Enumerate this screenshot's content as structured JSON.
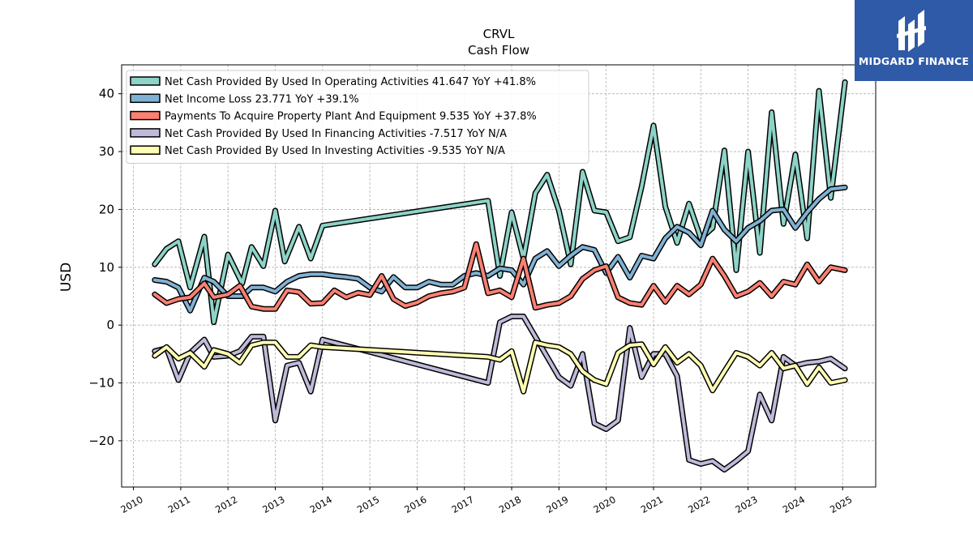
{
  "chart_data": {
    "type": "line",
    "title": "CRVL",
    "subtitle": "Cash Flow",
    "ylabel": "USD",
    "xlabel": "",
    "xlim": [
      2009.75,
      2025.7
    ],
    "ylim": [
      -28,
      45
    ],
    "yticks": [
      -20,
      -10,
      0,
      10,
      20,
      30,
      40
    ],
    "ytick_labels": [
      "−20",
      "−10",
      "0",
      "10",
      "20",
      "30",
      "40"
    ],
    "xticks": [
      2010,
      2011,
      2012,
      2013,
      2014,
      2015,
      2016,
      2017,
      2018,
      2019,
      2020,
      2021,
      2022,
      2023,
      2024,
      2025
    ],
    "grid": true,
    "legend_position": "top-left",
    "series": [
      {
        "name": "Net Cash Provided By Used In Operating Activities  41.647 YoY +41.8%",
        "color": "#8dd3c7",
        "x": [
          2010.45,
          2010.7,
          2010.95,
          2011.2,
          2011.5,
          2011.7,
          2012.0,
          2012.3,
          2012.5,
          2012.75,
          2013.0,
          2013.2,
          2013.5,
          2013.75,
          2014.0,
          2017.5,
          2017.75,
          2018.0,
          2018.25,
          2018.5,
          2018.75,
          2019.0,
          2019.25,
          2019.5,
          2019.75,
          2020.0,
          2020.25,
          2020.5,
          2020.75,
          2021.0,
          2021.25,
          2021.5,
          2021.75,
          2022.0,
          2022.25,
          2022.5,
          2022.75,
          2023.0,
          2023.25,
          2023.5,
          2023.75,
          2024.0,
          2024.25,
          2024.5,
          2024.75,
          2025.05
        ],
        "y": [
          10.5,
          13.2,
          14.5,
          6.5,
          15.3,
          0.5,
          12.2,
          7.2,
          13.5,
          10.2,
          19.8,
          11,
          17,
          11.5,
          17.2,
          21.5,
          8.5,
          19.5,
          11.5,
          22.8,
          26,
          19.8,
          10.5,
          26.5,
          19.8,
          19.5,
          14.5,
          15.2,
          24,
          34.5,
          20.5,
          14.2,
          21,
          15,
          16.8,
          30.2,
          9.5,
          30,
          12.5,
          36.8,
          17.5,
          29.5,
          15,
          40.5,
          22,
          42
        ]
      },
      {
        "name": "Net Income Loss  23.771 YoY +39.1%",
        "color": "#80b1d3",
        "x": [
          2010.45,
          2010.7,
          2010.95,
          2011.2,
          2011.5,
          2011.7,
          2012.0,
          2012.3,
          2012.5,
          2012.75,
          2013.0,
          2013.25,
          2013.5,
          2013.75,
          2014.0,
          2014.25,
          2014.5,
          2014.75,
          2015.0,
          2015.25,
          2015.5,
          2015.75,
          2016.0,
          2016.25,
          2016.5,
          2016.75,
          2017.0,
          2017.25,
          2017.5,
          2017.75,
          2018.0,
          2018.25,
          2018.5,
          2018.75,
          2019.0,
          2019.25,
          2019.5,
          2019.75,
          2020.0,
          2020.25,
          2020.5,
          2020.75,
          2021.0,
          2021.25,
          2021.5,
          2021.75,
          2022.0,
          2022.25,
          2022.5,
          2022.75,
          2023.0,
          2023.25,
          2023.5,
          2023.75,
          2024.0,
          2024.25,
          2024.5,
          2024.75,
          2025.05
        ],
        "y": [
          7.8,
          7.5,
          6.5,
          2.5,
          8.2,
          7.5,
          5,
          5,
          6.5,
          6.5,
          5.8,
          7.5,
          8.5,
          8.8,
          8.8,
          8.5,
          8.3,
          8,
          6.5,
          5.8,
          8.3,
          6.5,
          6.5,
          7.5,
          7,
          7,
          8.5,
          9,
          8.5,
          9.8,
          9.5,
          7,
          11.5,
          12.8,
          10.2,
          12,
          13.5,
          13,
          9,
          11.8,
          8.2,
          12,
          11.5,
          15,
          17,
          16,
          13.8,
          19.8,
          16.5,
          14.5,
          16.8,
          18,
          19.8,
          20,
          16.8,
          19.5,
          21.8,
          23.5,
          23.8
        ]
      },
      {
        "name": "Payments To Acquire Property Plant And Equipment  9.535 YoY +37.8%",
        "color": "#fb8072",
        "x": [
          2010.45,
          2010.7,
          2010.95,
          2011.2,
          2011.5,
          2011.7,
          2012.0,
          2012.25,
          2012.5,
          2012.75,
          2013.0,
          2013.25,
          2013.5,
          2013.75,
          2014.0,
          2014.25,
          2014.5,
          2014.75,
          2015.0,
          2015.25,
          2015.5,
          2015.75,
          2016.0,
          2016.25,
          2016.5,
          2016.75,
          2017.0,
          2017.25,
          2017.5,
          2017.75,
          2018.0,
          2018.25,
          2018.5,
          2018.75,
          2019.0,
          2019.25,
          2019.5,
          2019.75,
          2020.0,
          2020.25,
          2020.5,
          2020.75,
          2021.0,
          2021.25,
          2021.5,
          2021.75,
          2022.0,
          2022.25,
          2022.5,
          2022.75,
          2023.0,
          2023.25,
          2023.5,
          2023.75,
          2024.0,
          2024.25,
          2024.5,
          2024.75,
          2025.05
        ],
        "y": [
          5.3,
          3.8,
          4.5,
          4.8,
          7.2,
          4.8,
          5.3,
          6.8,
          3.2,
          2.8,
          2.8,
          6,
          5.7,
          3.7,
          3.8,
          6,
          4.8,
          5.6,
          5.2,
          8.5,
          4.5,
          3.3,
          3.9,
          5,
          5.5,
          5.8,
          6.5,
          14,
          5.5,
          6,
          4.8,
          11.5,
          3,
          3.5,
          3.8,
          5,
          8,
          9.5,
          10.2,
          4.8,
          3.8,
          3.5,
          6.8,
          4,
          6.8,
          5.3,
          7,
          11.5,
          8.5,
          5,
          5.8,
          7.3,
          5,
          7.5,
          7,
          10.5,
          7.5,
          10,
          9.5
        ]
      },
      {
        "name": "Net Cash Provided By Used In Financing Activities  -7.517 YoY N/A",
        "color": "#bebada",
        "x": [
          2010.45,
          2010.7,
          2010.95,
          2011.2,
          2011.5,
          2011.7,
          2012.0,
          2012.25,
          2012.5,
          2012.75,
          2013.0,
          2013.25,
          2013.5,
          2013.75,
          2014.0,
          2017.5,
          2017.75,
          2018.0,
          2018.25,
          2018.5,
          2018.75,
          2019.0,
          2019.25,
          2019.5,
          2019.75,
          2020.0,
          2020.25,
          2020.5,
          2020.75,
          2021.0,
          2021.25,
          2021.5,
          2021.75,
          2022.0,
          2022.25,
          2022.5,
          2022.75,
          2023.0,
          2023.25,
          2023.5,
          2023.75,
          2024.0,
          2024.25,
          2024.5,
          2024.75,
          2025.05
        ],
        "y": [
          -4.5,
          -4,
          -9.5,
          -4.8,
          -2.5,
          -5.5,
          -5.3,
          -4.5,
          -2,
          -2,
          -16.5,
          -7,
          -6.5,
          -11.5,
          -2.5,
          -10,
          0.5,
          1.5,
          1.5,
          -2,
          -5.5,
          -9,
          -10.5,
          -5,
          -17,
          -18,
          -16.5,
          -0.5,
          -9,
          -5,
          -5,
          -8.8,
          -23.3,
          -24,
          -23.5,
          -25,
          -23.5,
          -21.8,
          -12,
          -16.5,
          -5.5,
          -7,
          -6.5,
          -6.3,
          -5.8,
          -7.5
        ]
      },
      {
        "name": "Net Cash Provided By Used In Investing Activities  -9.535 YoY N/A",
        "color": "#ffffb3",
        "x": [
          2010.45,
          2010.7,
          2010.95,
          2011.2,
          2011.5,
          2011.7,
          2012.0,
          2012.25,
          2012.5,
          2012.75,
          2013.0,
          2013.25,
          2013.5,
          2013.75,
          2014.0,
          2017.5,
          2017.75,
          2018.0,
          2018.25,
          2018.5,
          2018.75,
          2019.0,
          2019.25,
          2019.5,
          2019.75,
          2020.0,
          2020.25,
          2020.5,
          2020.75,
          2021.0,
          2021.25,
          2021.5,
          2021.75,
          2022.0,
          2022.25,
          2022.5,
          2022.75,
          2023.0,
          2023.25,
          2023.5,
          2023.75,
          2024.0,
          2024.25,
          2024.5,
          2024.75,
          2025.05
        ],
        "y": [
          -5.3,
          -3.8,
          -5.8,
          -4.8,
          -7.2,
          -4.3,
          -5,
          -6.5,
          -3.5,
          -3,
          -3,
          -5.5,
          -5.5,
          -3.5,
          -3.8,
          -5.5,
          -6,
          -4.5,
          -11.5,
          -3,
          -3.5,
          -3.8,
          -5,
          -8,
          -9.5,
          -10.2,
          -4.8,
          -3.5,
          -3.3,
          -6.8,
          -3.8,
          -6.5,
          -5,
          -7,
          -11.3,
          -8,
          -4.8,
          -5.5,
          -7,
          -4.8,
          -7.5,
          -7,
          -10.2,
          -7.3,
          -10,
          -9.5
        ]
      }
    ]
  },
  "watermark": {
    "brand": "MIDGARD FINANCE"
  }
}
